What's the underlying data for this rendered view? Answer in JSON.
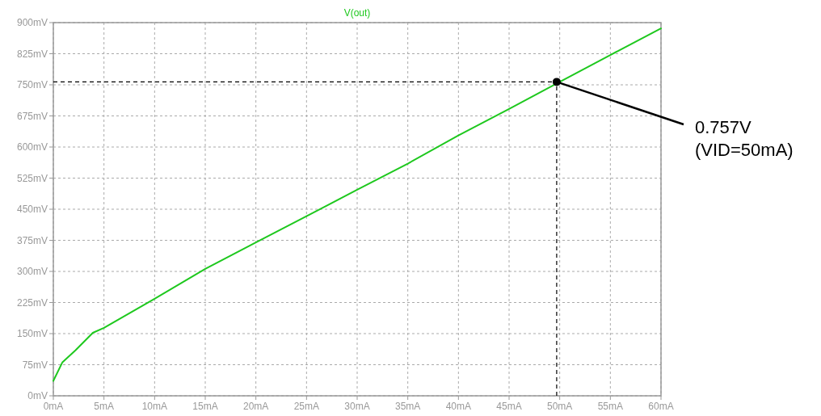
{
  "chart_data": {
    "type": "line",
    "title": "V(out)",
    "x": [
      0,
      0.9,
      2.2,
      3.9,
      5,
      10,
      15,
      20,
      25,
      30,
      35,
      40,
      45,
      50,
      55,
      60
    ],
    "series": [
      {
        "color": "#1ec81e",
        "values": [
          36,
          81,
          110,
          152,
          164,
          234,
          306,
          370,
          433,
          497,
          560,
          628,
          692,
          757,
          822,
          886
        ]
      }
    ],
    "xlim": [
      0,
      60
    ],
    "ylim": [
      0,
      900
    ],
    "xticks": [
      {
        "value": 0,
        "label": "0mA"
      },
      {
        "value": 5,
        "label": "5mA"
      },
      {
        "value": 10,
        "label": "10mA"
      },
      {
        "value": 15,
        "label": "15mA"
      },
      {
        "value": 20,
        "label": "20mA"
      },
      {
        "value": 25,
        "label": "25mA"
      },
      {
        "value": 30,
        "label": "30mA"
      },
      {
        "value": 35,
        "label": "35mA"
      },
      {
        "value": 40,
        "label": "40mA"
      },
      {
        "value": 45,
        "label": "45mA"
      },
      {
        "value": 50,
        "label": "50mA"
      },
      {
        "value": 55,
        "label": "55mA"
      },
      {
        "value": 60,
        "label": "60mA"
      }
    ],
    "yticks": [
      {
        "value": 0,
        "label": "0mV"
      },
      {
        "value": 75,
        "label": "75mV"
      },
      {
        "value": 150,
        "label": "150mV"
      },
      {
        "value": 225,
        "label": "225mV"
      },
      {
        "value": 300,
        "label": "300mV"
      },
      {
        "value": 375,
        "label": "375mV"
      },
      {
        "value": 450,
        "label": "450mV"
      },
      {
        "value": 525,
        "label": "525mV"
      },
      {
        "value": 600,
        "label": "600mV"
      },
      {
        "value": 675,
        "label": "675mV"
      },
      {
        "value": 750,
        "label": "750mV"
      },
      {
        "value": 825,
        "label": "825mV"
      },
      {
        "value": 900,
        "label": "900mV"
      }
    ],
    "grid": true,
    "marker": "none",
    "line_style": "solid",
    "ref_lines": [
      {
        "axis": "x",
        "value": 49.7,
        "color": "#000000",
        "line_style": "dashed"
      },
      {
        "axis": "y",
        "value": 757,
        "color": "#000000",
        "line_style": "dashed"
      }
    ],
    "annotations": [
      {
        "text": "0.757V\n(VID=50mA)",
        "x": 49.7,
        "y": 757
      }
    ]
  }
}
